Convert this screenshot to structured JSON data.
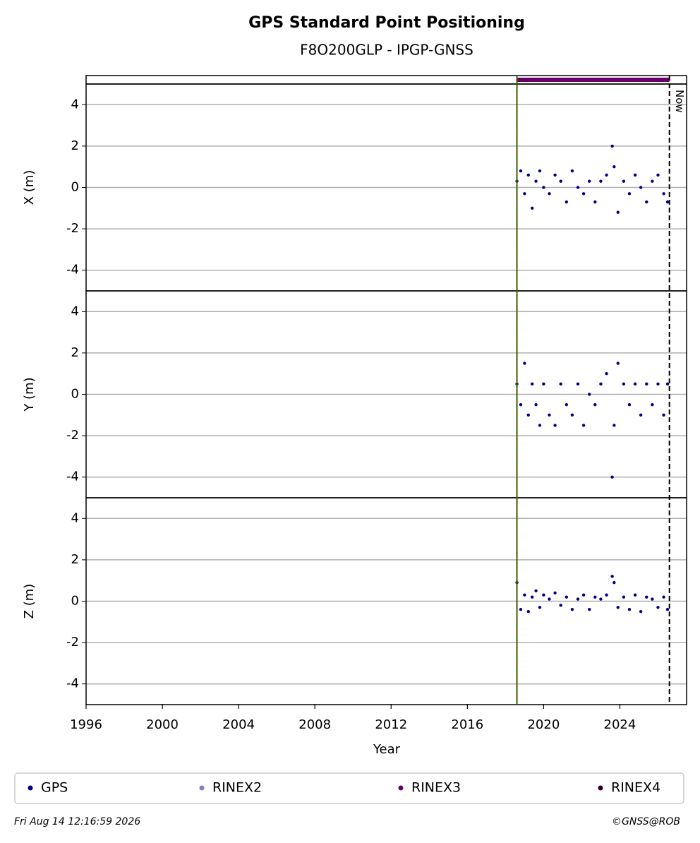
{
  "chart_data": {
    "type": "scatter",
    "title": "GPS Standard Point Positioning",
    "subtitle": "F8O200GLP - IPGP-GNSS",
    "xlabel": "Year",
    "xlim": [
      1996,
      2027.5
    ],
    "xticks": [
      1996,
      2000,
      2004,
      2008,
      2012,
      2016,
      2020,
      2024
    ],
    "grid": true,
    "start_line": {
      "x": 2018.6,
      "color": "#008000"
    },
    "annotations": [
      {
        "text": "Now",
        "x": 2026.6
      }
    ],
    "availability": [
      {
        "name": "RINEX3",
        "color": "#660066",
        "x": [
          2018.6,
          2026.6
        ]
      }
    ],
    "legend": [
      {
        "name": "GPS",
        "color": "#00008b"
      },
      {
        "name": "RINEX2",
        "color": "#7f7fbf"
      },
      {
        "name": "RINEX3",
        "color": "#660066"
      },
      {
        "name": "RINEX4",
        "color": "#330022"
      }
    ],
    "panels": [
      {
        "ylabel": "X (m)",
        "ylim": [
          -5,
          5
        ],
        "yticks": [
          4,
          2,
          0,
          -2,
          -4
        ],
        "series": [
          {
            "name": "GPS",
            "color": "#00008b",
            "x": [
              2018.6,
              2018.8,
              2019.0,
              2019.2,
              2019.4,
              2019.6,
              2019.8,
              2020.0,
              2020.3,
              2020.6,
              2020.9,
              2021.2,
              2021.5,
              2021.8,
              2022.1,
              2022.4,
              2022.7,
              2023.0,
              2023.3,
              2023.6,
              2023.7,
              2023.9,
              2024.2,
              2024.5,
              2024.8,
              2025.1,
              2025.4,
              2025.7,
              2026.0,
              2026.3,
              2026.5
            ],
            "values": [
              0.3,
              0.8,
              -0.3,
              0.6,
              -1.0,
              0.3,
              0.8,
              0,
              -0.3,
              0.6,
              0.3,
              -0.7,
              0.8,
              0,
              -0.3,
              0.3,
              -0.7,
              0.3,
              0.6,
              2.0,
              1.0,
              -1.2,
              0.3,
              -0.3,
              0.6,
              0,
              -0.7,
              0.3,
              0.6,
              -0.3,
              -0.7
            ]
          }
        ]
      },
      {
        "ylabel": "Y (m)",
        "ylim": [
          -5,
          5
        ],
        "yticks": [
          4,
          2,
          0,
          -2,
          -4
        ],
        "series": [
          {
            "name": "GPS",
            "color": "#00008b",
            "x": [
              2018.6,
              2018.8,
              2019.0,
              2019.2,
              2019.4,
              2019.6,
              2019.8,
              2020.0,
              2020.3,
              2020.6,
              2020.9,
              2021.2,
              2021.5,
              2021.8,
              2022.1,
              2022.4,
              2022.7,
              2023.0,
              2023.3,
              2023.6,
              2023.7,
              2023.9,
              2024.2,
              2024.5,
              2024.8,
              2025.1,
              2025.4,
              2025.7,
              2026.0,
              2026.3,
              2026.5
            ],
            "values": [
              0.5,
              -0.5,
              1.5,
              -1.0,
              0.5,
              -0.5,
              -1.5,
              0.5,
              -1.0,
              -1.5,
              0.5,
              -0.5,
              -1.0,
              0.5,
              -1.5,
              0,
              -0.5,
              0.5,
              1.0,
              -4.0,
              -1.5,
              1.5,
              0.5,
              -0.5,
              0.5,
              -1.0,
              0.5,
              -0.5,
              0.5,
              -1.0,
              0.5
            ]
          }
        ]
      },
      {
        "ylabel": "Z (m)",
        "ylim": [
          -5,
          5
        ],
        "yticks": [
          4,
          2,
          0,
          -2,
          -4
        ],
        "series": [
          {
            "name": "GPS",
            "color": "#00008b",
            "x": [
              2018.6,
              2018.8,
              2019.0,
              2019.2,
              2019.4,
              2019.6,
              2019.8,
              2020.0,
              2020.3,
              2020.6,
              2020.9,
              2021.2,
              2021.5,
              2021.8,
              2022.1,
              2022.4,
              2022.7,
              2023.0,
              2023.3,
              2023.6,
              2023.7,
              2023.9,
              2024.2,
              2024.5,
              2024.8,
              2025.1,
              2025.4,
              2025.7,
              2026.0,
              2026.3,
              2026.5
            ],
            "values": [
              0.9,
              -0.4,
              0.3,
              -0.5,
              0.2,
              0.5,
              -0.3,
              0.3,
              0.1,
              0.4,
              -0.2,
              0.2,
              -0.4,
              0.1,
              0.3,
              -0.4,
              0.2,
              0.1,
              0.3,
              1.2,
              0.9,
              -0.3,
              0.2,
              -0.4,
              0.3,
              -0.5,
              0.2,
              0.1,
              -0.3,
              0.2,
              -0.4
            ]
          }
        ]
      }
    ],
    "timestamp": "Fri Aug 14 12:16:59 2026",
    "credit": "©GNSS@ROB"
  }
}
